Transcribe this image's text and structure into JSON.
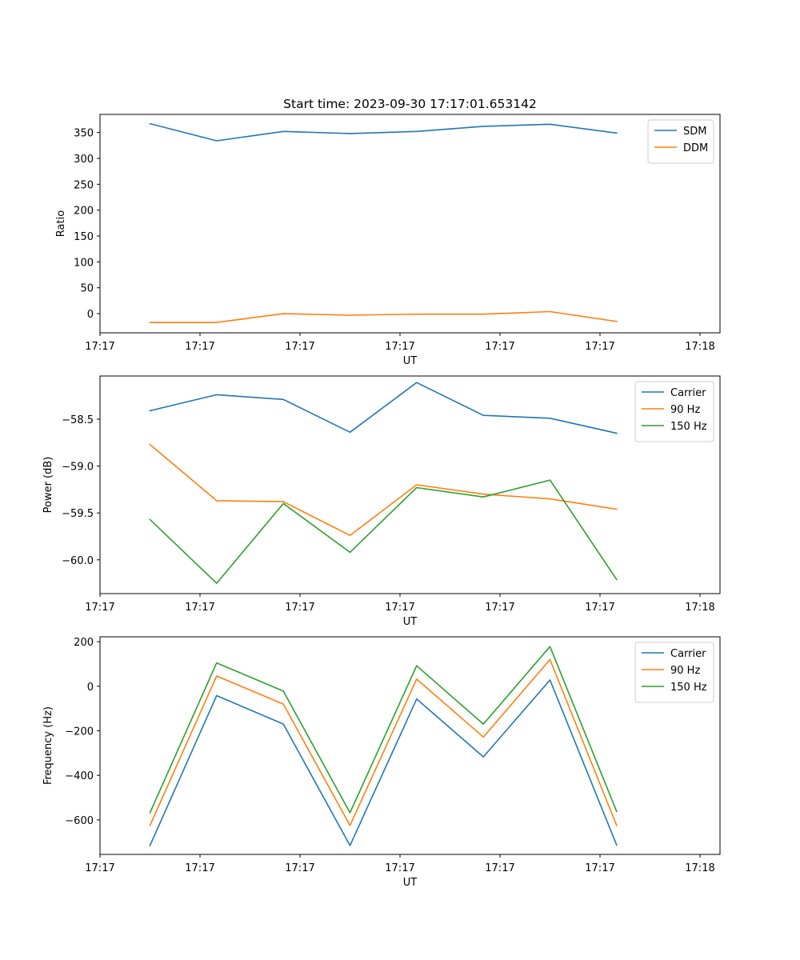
{
  "chart_data": [
    {
      "type": "line",
      "title": "Start time: 2023-09-30 17:17:01.653142",
      "xlabel": "UT",
      "ylabel": "Ratio",
      "xlim": [
        -0.25,
        9.05
      ],
      "ylim": [
        -37,
        385
      ],
      "xticks": [
        -0.25,
        1.25,
        2.75,
        4.25,
        5.75,
        7.25,
        8.75
      ],
      "xtick_labels": [
        "17:17",
        "17:17",
        "17:17",
        "17:17",
        "17:17",
        "17:17",
        "17:18"
      ],
      "yticks": [
        0,
        50,
        100,
        150,
        200,
        250,
        300,
        350
      ],
      "ytick_labels": [
        "0",
        "50",
        "100",
        "150",
        "200",
        "250",
        "300",
        "350"
      ],
      "x": [
        0.5,
        1.5,
        2.5,
        3.5,
        4.5,
        5.5,
        6.5,
        7.5
      ],
      "legend_position": "top-right",
      "series": [
        {
          "name": "SDM",
          "color": "#1f77b4",
          "values": [
            367,
            334,
            352,
            348,
            352,
            362,
            366,
            349
          ]
        },
        {
          "name": "DDM",
          "color": "#ff7f0e",
          "values": [
            -17,
            -17,
            0,
            -3,
            -1,
            -1,
            4,
            -15
          ]
        }
      ]
    },
    {
      "type": "line",
      "title": "",
      "xlabel": "UT",
      "ylabel": "Power (dB)",
      "xlim": [
        -0.25,
        9.05
      ],
      "ylim": [
        -60.36,
        -58.04
      ],
      "xticks": [
        -0.25,
        1.25,
        2.75,
        4.25,
        5.75,
        7.25,
        8.75
      ],
      "xtick_labels": [
        "17:17",
        "17:17",
        "17:17",
        "17:17",
        "17:17",
        "17:17",
        "17:18"
      ],
      "yticks": [
        -60.0,
        -59.5,
        -59.0,
        -58.5
      ],
      "ytick_labels": [
        "−60.0",
        "−59.5",
        "−59.0",
        "−58.5"
      ],
      "x": [
        0.5,
        1.5,
        2.5,
        3.5,
        4.5,
        5.5,
        6.5,
        7.5
      ],
      "legend_position": "top-right",
      "series": [
        {
          "name": "Carrier",
          "color": "#1f77b4",
          "values": [
            -58.41,
            -58.24,
            -58.29,
            -58.64,
            -58.11,
            -58.46,
            -58.49,
            -58.65
          ]
        },
        {
          "name": "90 Hz",
          "color": "#ff7f0e",
          "values": [
            -58.77,
            -59.37,
            -59.38,
            -59.74,
            -59.2,
            -59.3,
            -59.35,
            -59.46
          ]
        },
        {
          "name": "150 Hz",
          "color": "#2ca02c",
          "values": [
            -59.57,
            -60.25,
            -59.4,
            -59.92,
            -59.23,
            -59.33,
            -59.15,
            -60.21
          ]
        }
      ]
    },
    {
      "type": "line",
      "title": "",
      "xlabel": "UT",
      "ylabel": "Frequency (Hz)",
      "xlim": [
        -0.25,
        9.05
      ],
      "ylim": [
        -755,
        222
      ],
      "xticks": [
        -0.25,
        1.25,
        2.75,
        4.25,
        5.75,
        7.25,
        8.75
      ],
      "xtick_labels": [
        "17:17",
        "17:17",
        "17:17",
        "17:17",
        "17:17",
        "17:17",
        "17:18"
      ],
      "yticks": [
        -600,
        -400,
        -200,
        0,
        200
      ],
      "ytick_labels": [
        "−600",
        "−400",
        "−200",
        "0",
        "200"
      ],
      "x": [
        0.5,
        1.5,
        2.5,
        3.5,
        4.5,
        5.5,
        6.5,
        7.5
      ],
      "legend_position": "top-right",
      "series": [
        {
          "name": "Carrier",
          "color": "#1f77b4",
          "values": [
            -715,
            -42,
            -170,
            -715,
            -57,
            -317,
            28,
            -713
          ]
        },
        {
          "name": "90 Hz",
          "color": "#ff7f0e",
          "values": [
            -625,
            46,
            -80,
            -625,
            32,
            -228,
            120,
            -625
          ]
        },
        {
          "name": "150 Hz",
          "color": "#2ca02c",
          "values": [
            -568,
            105,
            -22,
            -568,
            92,
            -170,
            178,
            -562
          ]
        }
      ]
    }
  ]
}
